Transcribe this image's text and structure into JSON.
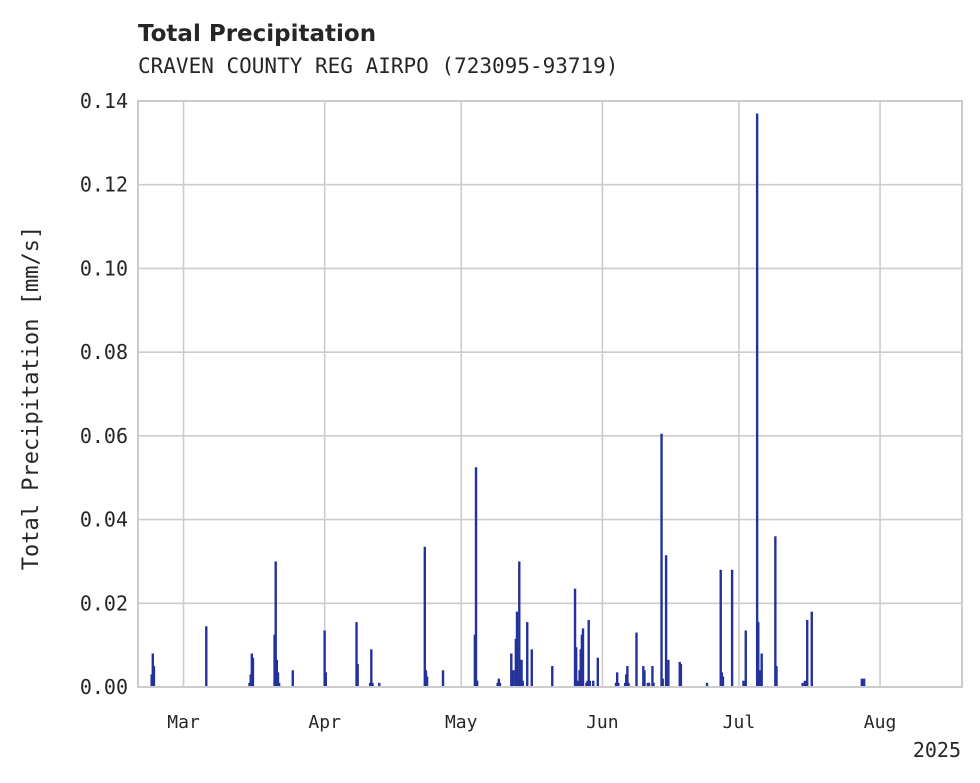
{
  "chart_data": {
    "type": "bar",
    "title": "Total Precipitation",
    "subtitle": "CRAVEN COUNTY REG AIRPO (723095-93719)",
    "xlabel": "",
    "ylabel": "Total Precipitation [mm/s]",
    "year_label": "2025",
    "xlim": [
      "2025-02-19",
      "2025-08-19"
    ],
    "ylim": [
      0,
      0.14
    ],
    "yticks": [
      0.0,
      0.02,
      0.04,
      0.06,
      0.08,
      0.1,
      0.12,
      0.14
    ],
    "ytick_labels": [
      "0.00",
      "0.02",
      "0.04",
      "0.06",
      "0.08",
      "0.10",
      "0.12",
      "0.14"
    ],
    "xticks": [
      "2025-03-01",
      "2025-04-01",
      "2025-05-01",
      "2025-06-01",
      "2025-07-01",
      "2025-08-01"
    ],
    "xtick_labels": [
      "Mar",
      "Apr",
      "May",
      "Jun",
      "Jul",
      "Aug"
    ],
    "grid": true,
    "bar_color": "#23329a",
    "x": [
      "2025-02-22T00:00",
      "2025-02-22T06:00",
      "2025-02-22T12:00",
      "2025-03-06T00:00",
      "2025-03-15T12:00",
      "2025-03-15T18:00",
      "2025-03-16T00:00",
      "2025-03-16T06:00",
      "2025-03-21T00:00",
      "2025-03-21T06:00",
      "2025-03-21T12:00",
      "2025-03-21T18:00",
      "2025-03-22T00:00",
      "2025-03-25T00:00",
      "2025-04-01T00:00",
      "2025-04-01T06:00",
      "2025-04-08T00:00",
      "2025-04-08T06:00",
      "2025-04-11T00:00",
      "2025-04-11T06:00",
      "2025-04-11T12:00",
      "2025-04-13T00:00",
      "2025-04-23T00:00",
      "2025-04-23T06:00",
      "2025-04-23T12:00",
      "2025-04-27T00:00",
      "2025-05-04T00:00",
      "2025-05-04T06:00",
      "2025-05-04T12:00",
      "2025-05-09T00:00",
      "2025-05-09T06:00",
      "2025-05-09T12:00",
      "2025-05-12T00:00",
      "2025-05-12T12:00",
      "2025-05-13T00:00",
      "2025-05-13T06:00",
      "2025-05-13T12:00",
      "2025-05-13T18:00",
      "2025-05-14T00:00",
      "2025-05-14T06:00",
      "2025-05-14T12:00",
      "2025-05-15T12:00",
      "2025-05-16T12:00",
      "2025-05-21T00:00",
      "2025-05-26T00:00",
      "2025-05-26T06:00",
      "2025-05-26T12:00",
      "2025-05-27T00:00",
      "2025-05-27T06:00",
      "2025-05-27T12:00",
      "2025-05-27T18:00",
      "2025-05-28T12:00",
      "2025-05-28T18:00",
      "2025-05-29T00:00",
      "2025-05-29T06:00",
      "2025-05-30T00:00",
      "2025-05-31T00:00",
      "2025-06-04T00:00",
      "2025-06-04T06:00",
      "2025-06-04T12:00",
      "2025-06-06T00:00",
      "2025-06-06T06:00",
      "2025-06-06T12:00",
      "2025-06-06T18:00",
      "2025-06-08T12:00",
      "2025-06-10T00:00",
      "2025-06-10T06:00",
      "2025-06-11T00:00",
      "2025-06-11T06:00",
      "2025-06-12T00:00",
      "2025-06-12T06:00",
      "2025-06-14T00:00",
      "2025-06-14T06:00",
      "2025-06-15T00:00",
      "2025-06-15T06:00",
      "2025-06-15T12:00",
      "2025-06-18T00:00",
      "2025-06-18T06:00",
      "2025-06-24T00:00",
      "2025-06-27T00:00",
      "2025-06-27T06:00",
      "2025-06-27T12:00",
      "2025-06-29T12:00",
      "2025-07-02T00:00",
      "2025-07-02T06:00",
      "2025-07-02T12:00",
      "2025-07-05T00:00",
      "2025-07-05T06:00",
      "2025-07-05T12:00",
      "2025-07-05T18:00",
      "2025-07-06T00:00",
      "2025-07-09T00:00",
      "2025-07-09T06:00",
      "2025-07-15T00:00",
      "2025-07-15T12:00",
      "2025-07-16T00:00",
      "2025-07-17T00:00",
      "2025-07-28T00:00",
      "2025-07-28T12:00"
    ],
    "values": [
      0.003,
      0.008,
      0.005,
      0.0145,
      0.001,
      0.003,
      0.008,
      0.007,
      0.0125,
      0.03,
      0.0065,
      0.0035,
      0.001,
      0.004,
      0.0135,
      0.0035,
      0.0155,
      0.0055,
      0.001,
      0.009,
      0.001,
      0.001,
      0.0335,
      0.004,
      0.0025,
      0.004,
      0.0125,
      0.0525,
      0.0015,
      0.001,
      0.002,
      0.001,
      0.008,
      0.004,
      0.0115,
      0.018,
      0.0015,
      0.03,
      0.001,
      0.0065,
      0.0015,
      0.0155,
      0.009,
      0.005,
      0.0235,
      0.0095,
      0.0015,
      0.004,
      0.009,
      0.0125,
      0.014,
      0.001,
      0.0015,
      0.016,
      0.0015,
      0.0015,
      0.007,
      0.001,
      0.0035,
      0.001,
      0.001,
      0.003,
      0.005,
      0.001,
      0.013,
      0.005,
      0.004,
      0.001,
      0.001,
      0.005,
      0.001,
      0.0605,
      0.002,
      0.0315,
      0.001,
      0.0065,
      0.006,
      0.0055,
      0.001,
      0.028,
      0.0035,
      0.0025,
      0.028,
      0.0015,
      0.001,
      0.0135,
      0.137,
      0.0155,
      0.004,
      0.001,
      0.008,
      0.036,
      0.005,
      0.001,
      0.0015,
      0.016,
      0.018,
      0.002,
      0.002
    ]
  }
}
